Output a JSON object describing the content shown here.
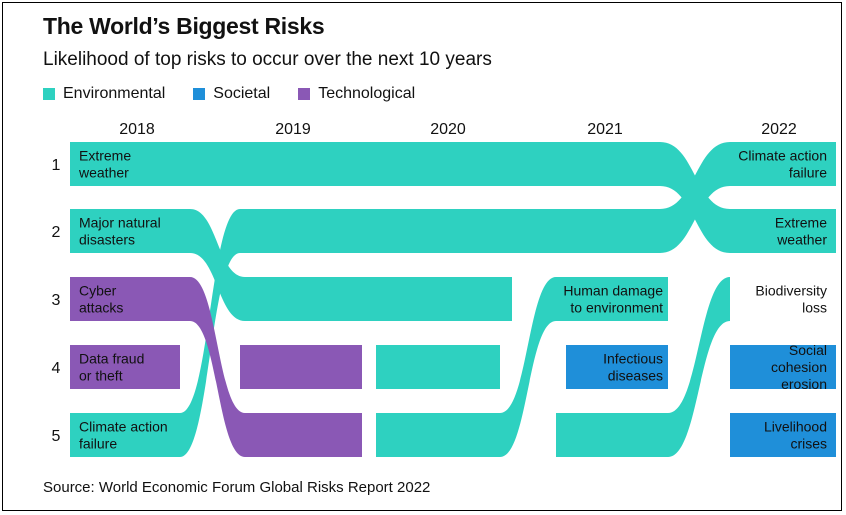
{
  "title": "The World’s Biggest Risks",
  "subtitle": "Likelihood of top risks to occur over the next 10 years",
  "legend": [
    {
      "name": "Environmental",
      "color": "#2ed1c0"
    },
    {
      "name": "Societal",
      "color": "#1f8fd9"
    },
    {
      "name": "Technological",
      "color": "#8a58b5"
    }
  ],
  "source": "Source: World Economic Forum Global Risks Report 2022",
  "chart_data": {
    "type": "table",
    "years": [
      "2018",
      "2019",
      "2020",
      "2021",
      "2022"
    ],
    "ranks": [
      "1",
      "2",
      "3",
      "4",
      "5"
    ],
    "rows": [
      {
        "year": "2018",
        "risks": [
          {
            "rank": 1,
            "label": [
              "Extreme",
              "weather"
            ],
            "category": "Environmental"
          },
          {
            "rank": 2,
            "label": [
              "Major natural",
              "disasters"
            ],
            "category": "Environmental"
          },
          {
            "rank": 3,
            "label": [
              "Cyber",
              "attacks"
            ],
            "category": "Technological"
          },
          {
            "rank": 4,
            "label": [
              "Data fraud",
              "or theft"
            ],
            "category": "Technological"
          },
          {
            "rank": 5,
            "label": [
              "Climate action",
              "failure"
            ],
            "category": "Environmental"
          }
        ]
      },
      {
        "year": "2021",
        "risks": [
          {
            "rank": 3,
            "label": [
              "Human damage",
              "to environment"
            ],
            "category": "Environmental"
          },
          {
            "rank": 4,
            "label": [
              "Infectious",
              "diseases"
            ],
            "category": "Societal"
          }
        ]
      },
      {
        "year": "2022",
        "risks": [
          {
            "rank": 1,
            "label": [
              "Climate action",
              "failure"
            ],
            "category": "Environmental"
          },
          {
            "rank": 2,
            "label": [
              "Extreme",
              "weather"
            ],
            "category": "Environmental"
          },
          {
            "rank": 3,
            "label": [
              "Biodiversity",
              "loss"
            ],
            "category": "Environmental"
          },
          {
            "rank": 4,
            "label": [
              "Social",
              "cohesion",
              "erosion"
            ],
            "category": "Societal"
          },
          {
            "rank": 5,
            "label": [
              "Livelihood",
              "crises"
            ],
            "category": "Societal"
          }
        ]
      }
    ],
    "colors": {
      "Environmental": "#2ed1c0",
      "Societal": "#1f8fd9",
      "Technological": "#8a58b5"
    }
  }
}
